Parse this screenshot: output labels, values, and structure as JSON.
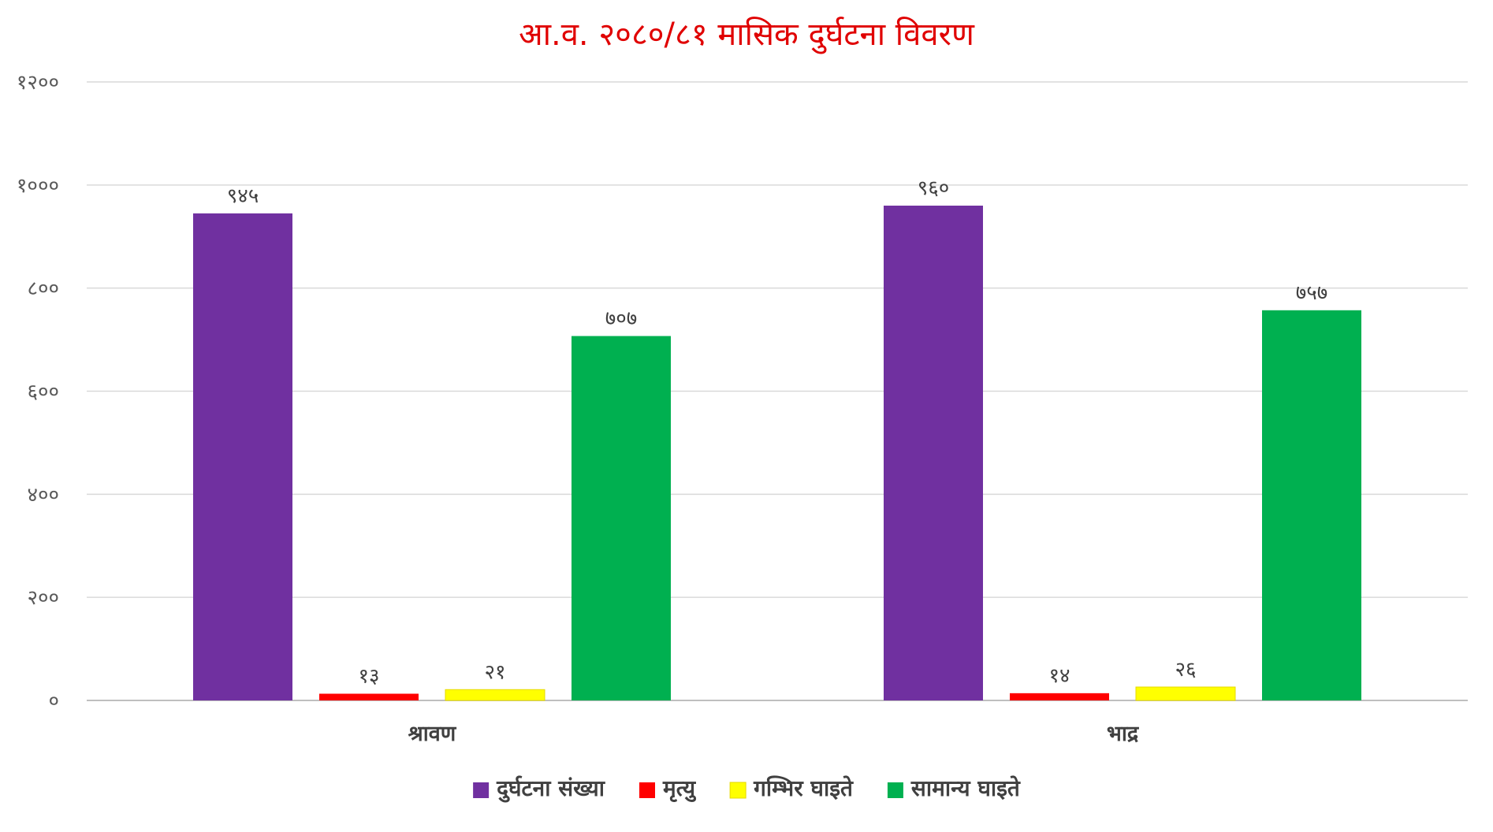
{
  "chart_data": {
    "type": "bar",
    "title": "आ.व. २०८०/८१ मासिक दुर्घटना विवरण",
    "categories": [
      "श्रावण",
      "भाद्र"
    ],
    "series": [
      {
        "name": "दुर्घटना संख्या",
        "values": [
          945,
          960
        ],
        "value_labels": [
          "९४५",
          "९६०"
        ],
        "color": "#7030a0"
      },
      {
        "name": "मृत्यु",
        "values": [
          13,
          14
        ],
        "value_labels": [
          "१३",
          "१४"
        ],
        "color": "#ff0000"
      },
      {
        "name": "गम्भिर घाइते",
        "values": [
          21,
          26
        ],
        "value_labels": [
          "२१",
          "२६"
        ],
        "color": "#ffff00"
      },
      {
        "name": "सामान्य घाइते",
        "values": [
          707,
          757
        ],
        "value_labels": [
          "७०७",
          "७५७"
        ],
        "color": "#00b050"
      }
    ],
    "y_ticks": [
      0,
      200,
      400,
      600,
      800,
      1000,
      1200
    ],
    "y_tick_labels": [
      "०",
      "२००",
      "४००",
      "६००",
      "८००",
      "१०००",
      "१२००"
    ],
    "ylim": [
      0,
      1200
    ],
    "xlabel": "",
    "ylabel": "",
    "grid": true,
    "legend_position": "bottom-center"
  }
}
